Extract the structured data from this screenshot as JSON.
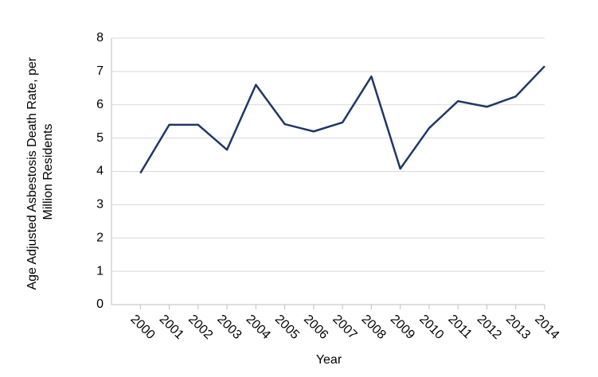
{
  "chart_data": {
    "type": "line",
    "x_label": "Year",
    "y_label": [
      "Age Adjusted Asbestosis Death Rate, per",
      "Million Residents"
    ],
    "categories": [
      "2000",
      "2001",
      "2002",
      "2003",
      "2004",
      "2005",
      "2006",
      "2007",
      "2008",
      "2009",
      "2010",
      "2011",
      "2012",
      "2013",
      "2014"
    ],
    "series": [
      {
        "color": "#1f3864",
        "values": [
          3.95,
          5.4,
          5.4,
          4.65,
          6.6,
          5.42,
          5.2,
          5.47,
          6.85,
          4.08,
          5.3,
          6.11,
          5.94,
          6.25,
          7.16
        ]
      }
    ],
    "ylim": [
      0,
      8
    ],
    "yticks": [
      0,
      1,
      2,
      3,
      4,
      5,
      6,
      7,
      8
    ],
    "grid": true
  }
}
